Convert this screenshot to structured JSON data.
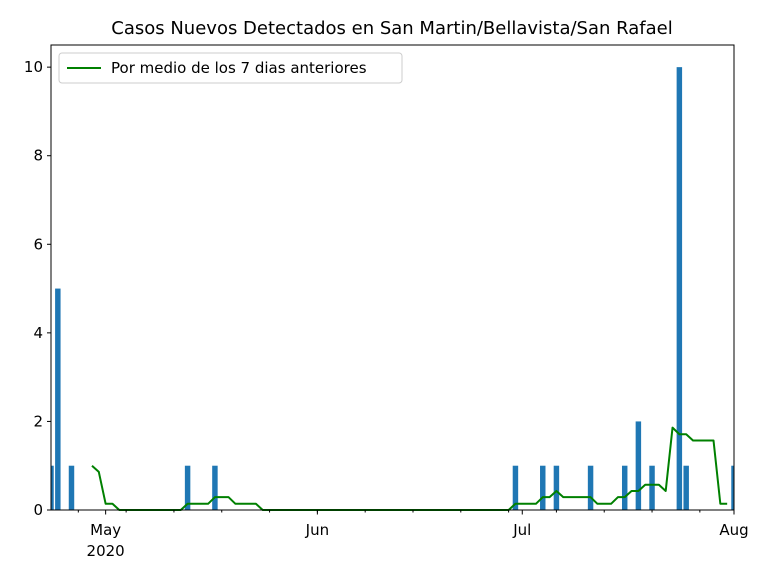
{
  "chart_data": {
    "type": "bar",
    "title": "Casos Nuevos Detectados en San Martin/Bellavista/San Rafael",
    "xlabel": "",
    "ylabel": "",
    "x_range": [
      "2020-04-23",
      "2020-08-01"
    ],
    "ylim": [
      0,
      10.5
    ],
    "y_ticks": [
      0,
      2,
      4,
      6,
      8,
      10
    ],
    "x_ticks": [
      {
        "date": "2020-05-01",
        "label": "May",
        "sublabel": "2020"
      },
      {
        "date": "2020-06-01",
        "label": "Jun",
        "sublabel": ""
      },
      {
        "date": "2020-07-01",
        "label": "Jul",
        "sublabel": ""
      },
      {
        "date": "2020-08-01",
        "label": "Aug",
        "sublabel": ""
      }
    ],
    "grid": false,
    "legend": {
      "position": "top-left"
    },
    "bar_color": "#1f77b4",
    "line_color": "#008000",
    "bars": [
      {
        "date": "2020-04-23",
        "value": 1
      },
      {
        "date": "2020-04-24",
        "value": 5
      },
      {
        "date": "2020-04-26",
        "value": 1
      },
      {
        "date": "2020-05-13",
        "value": 1
      },
      {
        "date": "2020-05-17",
        "value": 1
      },
      {
        "date": "2020-06-30",
        "value": 1
      },
      {
        "date": "2020-07-04",
        "value": 1
      },
      {
        "date": "2020-07-06",
        "value": 1
      },
      {
        "date": "2020-07-11",
        "value": 1
      },
      {
        "date": "2020-07-16",
        "value": 1
      },
      {
        "date": "2020-07-18",
        "value": 2
      },
      {
        "date": "2020-07-20",
        "value": 1
      },
      {
        "date": "2020-07-24",
        "value": 10
      },
      {
        "date": "2020-07-25",
        "value": 1
      },
      {
        "date": "2020-08-01",
        "value": 1
      }
    ],
    "series": [
      {
        "name": "Por medio de los 7 dias anteriores",
        "points": [
          {
            "date": "2020-04-29",
            "value": 1.0
          },
          {
            "date": "2020-04-30",
            "value": 0.86
          },
          {
            "date": "2020-05-01",
            "value": 0.14
          },
          {
            "date": "2020-05-02",
            "value": 0.14
          },
          {
            "date": "2020-05-03",
            "value": 0.0
          },
          {
            "date": "2020-05-12",
            "value": 0.0
          },
          {
            "date": "2020-05-13",
            "value": 0.14
          },
          {
            "date": "2020-05-16",
            "value": 0.14
          },
          {
            "date": "2020-05-17",
            "value": 0.29
          },
          {
            "date": "2020-05-19",
            "value": 0.29
          },
          {
            "date": "2020-05-20",
            "value": 0.14
          },
          {
            "date": "2020-05-23",
            "value": 0.14
          },
          {
            "date": "2020-05-24",
            "value": 0.0
          },
          {
            "date": "2020-06-29",
            "value": 0.0
          },
          {
            "date": "2020-06-30",
            "value": 0.14
          },
          {
            "date": "2020-07-03",
            "value": 0.14
          },
          {
            "date": "2020-07-04",
            "value": 0.29
          },
          {
            "date": "2020-07-05",
            "value": 0.29
          },
          {
            "date": "2020-07-06",
            "value": 0.43
          },
          {
            "date": "2020-07-07",
            "value": 0.29
          },
          {
            "date": "2020-07-11",
            "value": 0.29
          },
          {
            "date": "2020-07-12",
            "value": 0.14
          },
          {
            "date": "2020-07-14",
            "value": 0.14
          },
          {
            "date": "2020-07-15",
            "value": 0.29
          },
          {
            "date": "2020-07-16",
            "value": 0.29
          },
          {
            "date": "2020-07-17",
            "value": 0.43
          },
          {
            "date": "2020-07-18",
            "value": 0.43
          },
          {
            "date": "2020-07-19",
            "value": 0.57
          },
          {
            "date": "2020-07-21",
            "value": 0.57
          },
          {
            "date": "2020-07-22",
            "value": 0.43
          },
          {
            "date": "2020-07-23",
            "value": 1.86
          },
          {
            "date": "2020-07-24",
            "value": 1.71
          },
          {
            "date": "2020-07-25",
            "value": 1.71
          },
          {
            "date": "2020-07-26",
            "value": 1.57
          },
          {
            "date": "2020-07-29",
            "value": 1.57
          },
          {
            "date": "2020-07-30",
            "value": 0.14
          },
          {
            "date": "2020-07-31",
            "value": 0.14
          }
        ]
      }
    ]
  }
}
